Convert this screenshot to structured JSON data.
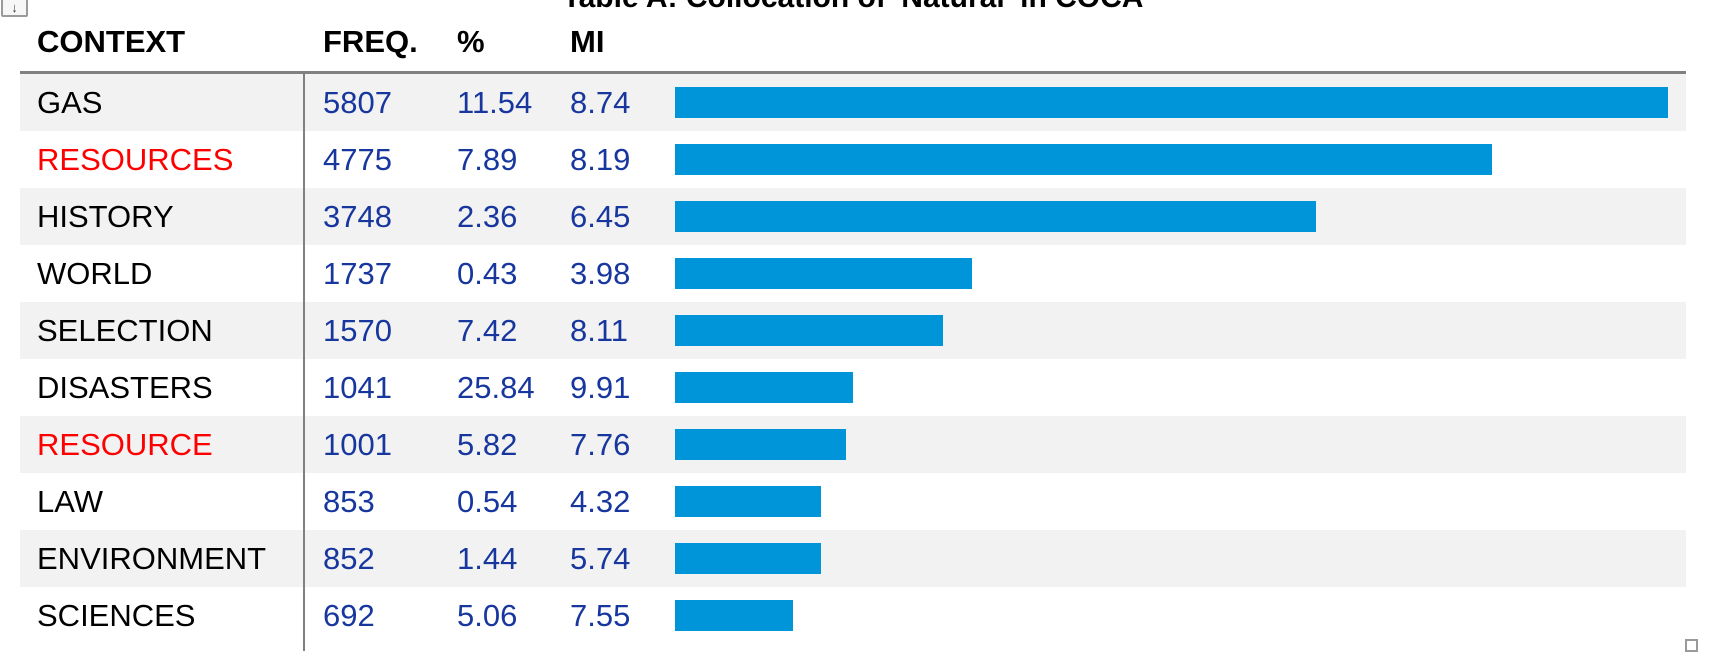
{
  "title": "Table A: Collocation of 'Natural' in COCA",
  "corner_button": {
    "icon": "down-arrow",
    "glyph": "↓"
  },
  "table": {
    "columns": [
      "CONTEXT",
      "FREQ.",
      "%",
      "MI"
    ],
    "rows": [
      {
        "context": "GAS",
        "freq": "5807",
        "pct": "11.54",
        "mi": "8.74",
        "highlight": false
      },
      {
        "context": "RESOURCES",
        "freq": "4775",
        "pct": "7.89",
        "mi": "8.19",
        "highlight": true
      },
      {
        "context": "HISTORY",
        "freq": "3748",
        "pct": "2.36",
        "mi": "6.45",
        "highlight": false
      },
      {
        "context": "WORLD",
        "freq": "1737",
        "pct": "0.43",
        "mi": "3.98",
        "highlight": false
      },
      {
        "context": "SELECTION",
        "freq": "1570",
        "pct": "7.42",
        "mi": "8.11",
        "highlight": false
      },
      {
        "context": "DISASTERS",
        "freq": "1041",
        "pct": "25.84",
        "mi": "9.91",
        "highlight": false
      },
      {
        "context": "RESOURCE",
        "freq": "1001",
        "pct": "5.82",
        "mi": "7.76",
        "highlight": true
      },
      {
        "context": "LAW",
        "freq": "853",
        "pct": "0.54",
        "mi": "4.32",
        "highlight": false
      },
      {
        "context": "ENVIRONMENT",
        "freq": "852",
        "pct": "1.44",
        "mi": "5.74",
        "highlight": false
      },
      {
        "context": "SCIENCES",
        "freq": "692",
        "pct": "5.06",
        "mi": "7.55",
        "highlight": false
      }
    ]
  },
  "chart_data": {
    "type": "bar",
    "title": "Table A: Collocation of 'Natural' in COCA",
    "orientation": "horizontal",
    "categories": [
      "GAS",
      "RESOURCES",
      "HISTORY",
      "WORLD",
      "SELECTION",
      "DISASTERS",
      "RESOURCE",
      "LAW",
      "ENVIRONMENT",
      "SCIENCES"
    ],
    "values": [
      5807,
      4775,
      3748,
      1737,
      1570,
      1041,
      1001,
      853,
      852,
      692
    ],
    "series": [
      {
        "name": "FREQ.",
        "values": [
          5807,
          4775,
          3748,
          1737,
          1570,
          1041,
          1001,
          853,
          852,
          692
        ]
      },
      {
        "name": "%",
        "values": [
          11.54,
          7.89,
          2.36,
          0.43,
          7.42,
          25.84,
          5.82,
          0.54,
          1.44,
          5.06
        ]
      },
      {
        "name": "MI",
        "values": [
          8.74,
          8.19,
          6.45,
          3.98,
          8.11,
          9.91,
          7.76,
          4.32,
          5.74,
          7.55
        ]
      }
    ],
    "bar_value_source": "FREQ.",
    "xlim": [
      0,
      5807
    ],
    "grid": false,
    "legend": "none",
    "highlighted_categories": [
      "RESOURCES",
      "RESOURCE"
    ],
    "bar_color": "#0094d8",
    "highlight_text_color": "#ff0000",
    "value_text_color": "#17379e"
  },
  "colors": {
    "bar": "#0094d8",
    "numbers": "#17379e",
    "highlight": "#ff0000",
    "stripe": "#f2f2f2",
    "rule": "#808080"
  }
}
